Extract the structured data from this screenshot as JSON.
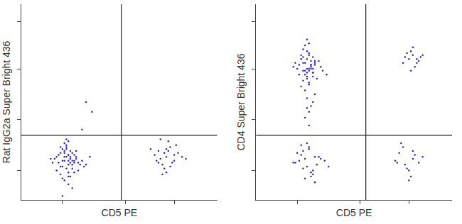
{
  "chart_data": [
    {
      "type": "scatter",
      "x_label": "CD5 PE",
      "y_label": "Rat IgG2a Super Bright 436",
      "xlim": [
        0,
        100
      ],
      "ylim": [
        0,
        100
      ],
      "xticks": [
        21,
        53,
        78
      ],
      "yticks": [
        15,
        41,
        67,
        91
      ],
      "tick_labels": false,
      "gates": {
        "x": 51,
        "y": 33
      },
      "color": "#2a2ab0",
      "marker": "dot",
      "x": [
        24,
        22,
        26,
        20,
        25,
        23,
        27,
        19,
        21,
        28,
        24,
        22,
        25,
        30,
        18,
        23,
        26,
        21,
        24,
        29,
        17,
        25,
        22,
        27,
        20,
        31,
        23,
        26,
        24,
        16,
        28,
        22,
        25,
        19,
        33,
        24,
        21,
        27,
        23,
        35,
        20,
        26,
        24,
        22,
        18,
        29,
        25,
        23,
        27,
        21,
        15,
        24,
        26,
        32,
        22,
        25,
        20,
        28,
        24,
        23,
        33,
        36,
        31,
        21,
        74,
        70,
        78,
        72,
        76,
        68,
        80,
        73,
        75,
        71,
        77,
        66,
        82,
        74,
        69,
        79,
        73,
        76,
        71,
        84,
        75,
        72,
        78,
        70,
        74
      ],
      "y": [
        20,
        22,
        18,
        24,
        21,
        16,
        23,
        19,
        26,
        21,
        14,
        20,
        25,
        18,
        22,
        28,
        20,
        17,
        23,
        15,
        21,
        12,
        24,
        19,
        27,
        20,
        22,
        16,
        30,
        19,
        25,
        10,
        21,
        23,
        18,
        8,
        20,
        14,
        26,
        22,
        17,
        24,
        12,
        29,
        15,
        19,
        22,
        27,
        20,
        11,
        21,
        23,
        6,
        17,
        25,
        19,
        13,
        22,
        18,
        31,
        50,
        45,
        36,
        2,
        22,
        25,
        20,
        18,
        27,
        23,
        24,
        16,
        30,
        21,
        19,
        26,
        22,
        14,
        20,
        28,
        24,
        17,
        31,
        21,
        25,
        13,
        23,
        19,
        26
      ]
    },
    {
      "type": "scatter",
      "x_label": "CD5 PE",
      "y_label": "CD4 Super Bright 436",
      "xlim": [
        0,
        100
      ],
      "ylim": [
        0,
        100
      ],
      "xticks": [
        21,
        53,
        78
      ],
      "yticks": [
        15,
        41,
        67,
        91
      ],
      "tick_labels": false,
      "gates": {
        "x": 56,
        "y": 33
      },
      "color": "#2a2ab0",
      "marker": "dot",
      "x": [
        27,
        25,
        29,
        23,
        28,
        26,
        30,
        24,
        27,
        22,
        31,
        26,
        28,
        25,
        20,
        29,
        27,
        33,
        24,
        26,
        28,
        23,
        30,
        27,
        25,
        21,
        29,
        26,
        34,
        24,
        27,
        28,
        22,
        26,
        30,
        25,
        27,
        19,
        29,
        24,
        26,
        28,
        32,
        25,
        27,
        23,
        29,
        26,
        36,
        24,
        26,
        28,
        27,
        25,
        29,
        27,
        30,
        26,
        78,
        80,
        82,
        76,
        79,
        83,
        81,
        77,
        84,
        80,
        75,
        82,
        79,
        85,
        22,
        26,
        30,
        24,
        28,
        20,
        33,
        27,
        25,
        31,
        23,
        29,
        35,
        21,
        26,
        28,
        24,
        32,
        19,
        27,
        30,
        25,
        37,
        23,
        29,
        76,
        80,
        73,
        78,
        83,
        75,
        79,
        71,
        81,
        77,
        74,
        85,
        78,
        72,
        80
      ],
      "y": [
        67,
        70,
        65,
        72,
        68,
        63,
        71,
        66,
        74,
        69,
        62,
        76,
        67,
        64,
        70,
        73,
        60,
        68,
        77,
        65,
        71,
        58,
        69,
        66,
        79,
        67,
        63,
        72,
        66,
        61,
        75,
        69,
        64,
        67,
        70,
        56,
        80,
        68,
        65,
        73,
        62,
        69,
        71,
        66,
        59,
        74,
        67,
        82,
        64,
        70,
        52,
        48,
        45,
        42,
        50,
        38,
        54,
        47,
        72,
        74,
        70,
        73,
        76,
        71,
        68,
        75,
        73,
        78,
        70,
        72,
        66,
        74,
        20,
        17,
        22,
        25,
        14,
        19,
        21,
        27,
        11,
        18,
        23,
        15,
        20,
        24,
        29,
        12,
        16,
        22,
        19,
        26,
        9,
        21,
        17,
        28,
        13,
        18,
        21,
        24,
        15,
        19,
        27,
        12,
        20,
        23,
        16,
        29,
        22,
        10,
        19,
        25
      ]
    }
  ]
}
